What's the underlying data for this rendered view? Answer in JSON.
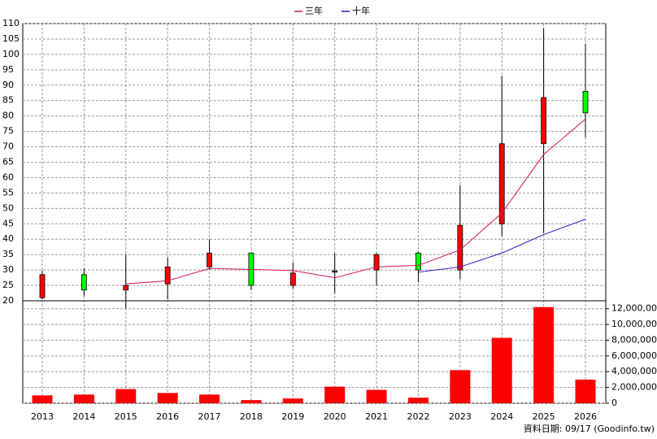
{
  "chart_data": [
    {
      "type": "candlestick",
      "categories": [
        "2013",
        "2014",
        "2015",
        "2016",
        "2017",
        "2018",
        "2019",
        "2020",
        "2021",
        "2022",
        "2023",
        "2024",
        "2025",
        "2026"
      ],
      "open": [
        21,
        28.5,
        23.5,
        25.5,
        31,
        35.5,
        25,
        29.3,
        30,
        35.5,
        30,
        45,
        71,
        88
      ],
      "high": [
        29.8,
        30.5,
        35,
        34,
        40,
        35.5,
        32.5,
        35.5,
        35.5,
        36,
        57.5,
        93,
        108.5,
        103.5
      ],
      "low": [
        20.5,
        21.5,
        17.5,
        20.5,
        30,
        23.5,
        24,
        22.5,
        25,
        26,
        27,
        41,
        42,
        73
      ],
      "close": [
        28.5,
        23.5,
        25,
        31,
        35.5,
        25,
        29,
        29.7,
        35,
        30,
        44.5,
        71,
        86,
        81
      ],
      "up_color": "#ff0000",
      "down_color": "#00ff00",
      "series": [
        {
          "name": "三年",
          "color": "#d4145a",
          "values": [
            null,
            null,
            25.5,
            26.5,
            30.5,
            30.2,
            29.8,
            27.5,
            31,
            31.5,
            36.5,
            48.5,
            67.5,
            79
          ]
        },
        {
          "name": "十年",
          "color": "#3a10c8",
          "values": [
            null,
            null,
            null,
            null,
            null,
            null,
            null,
            null,
            null,
            29.3,
            31,
            35.5,
            41.5,
            46.5
          ]
        }
      ],
      "ylim": [
        20,
        110
      ],
      "yticks": [
        20,
        25,
        30,
        35,
        40,
        45,
        50,
        55,
        60,
        65,
        70,
        75,
        80,
        85,
        90,
        95,
        100,
        105,
        110
      ],
      "grid": true,
      "legend": "top",
      "note": "資料日期: 09/17  (Goodinfo.tw)"
    },
    {
      "type": "bar",
      "values": [
        1000000,
        1100000,
        1800000,
        1300000,
        1100000,
        400000,
        600000,
        2100000,
        1700000,
        700000,
        4200000,
        8300000,
        12200000,
        3000000
      ],
      "color": "#ff0000",
      "ylim": [
        0,
        13000000
      ],
      "yticks": [
        0,
        {
          "value": 2000000,
          "label": "2,000,000"
        },
        {
          "value": 4000000,
          "label": "4,000,000"
        },
        {
          "value": 6000000,
          "label": "6,000,000"
        },
        {
          "value": 8000000,
          "label": "8,000,000"
        },
        {
          "value": 10000000,
          "label": "10,000,000"
        },
        {
          "value": 12000000,
          "label": "12,000,000"
        }
      ],
      "grid": true
    }
  ]
}
